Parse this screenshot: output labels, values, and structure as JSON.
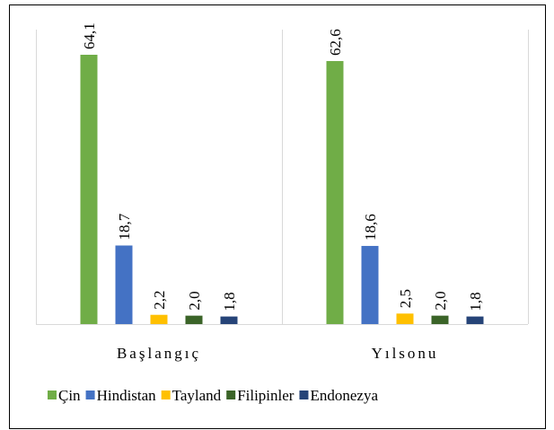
{
  "chart_data": {
    "type": "bar",
    "categories": [
      "Başlangıç",
      "Yılsonu"
    ],
    "series": [
      {
        "name": "Çin",
        "color": "#70ad47",
        "values": [
          64.1,
          62.6
        ],
        "value_labels": [
          "64,1",
          "62,6"
        ]
      },
      {
        "name": "Hindistan",
        "color": "#4472c4",
        "values": [
          18.7,
          18.6
        ],
        "value_labels": [
          "18,7",
          "18,6"
        ]
      },
      {
        "name": "Tayland",
        "color": "#ffc000",
        "values": [
          2.2,
          2.5
        ],
        "value_labels": [
          "2,2",
          "2,5"
        ]
      },
      {
        "name": "Filipinler",
        "color": "#3b6428",
        "values": [
          2.0,
          2.0
        ],
        "value_labels": [
          "2,0",
          "2,0"
        ]
      },
      {
        "name": "Endonezya",
        "color": "#264478",
        "values": [
          1.8,
          1.8
        ],
        "value_labels": [
          "1,8",
          "1,8"
        ]
      }
    ],
    "legend": "bottom"
  }
}
